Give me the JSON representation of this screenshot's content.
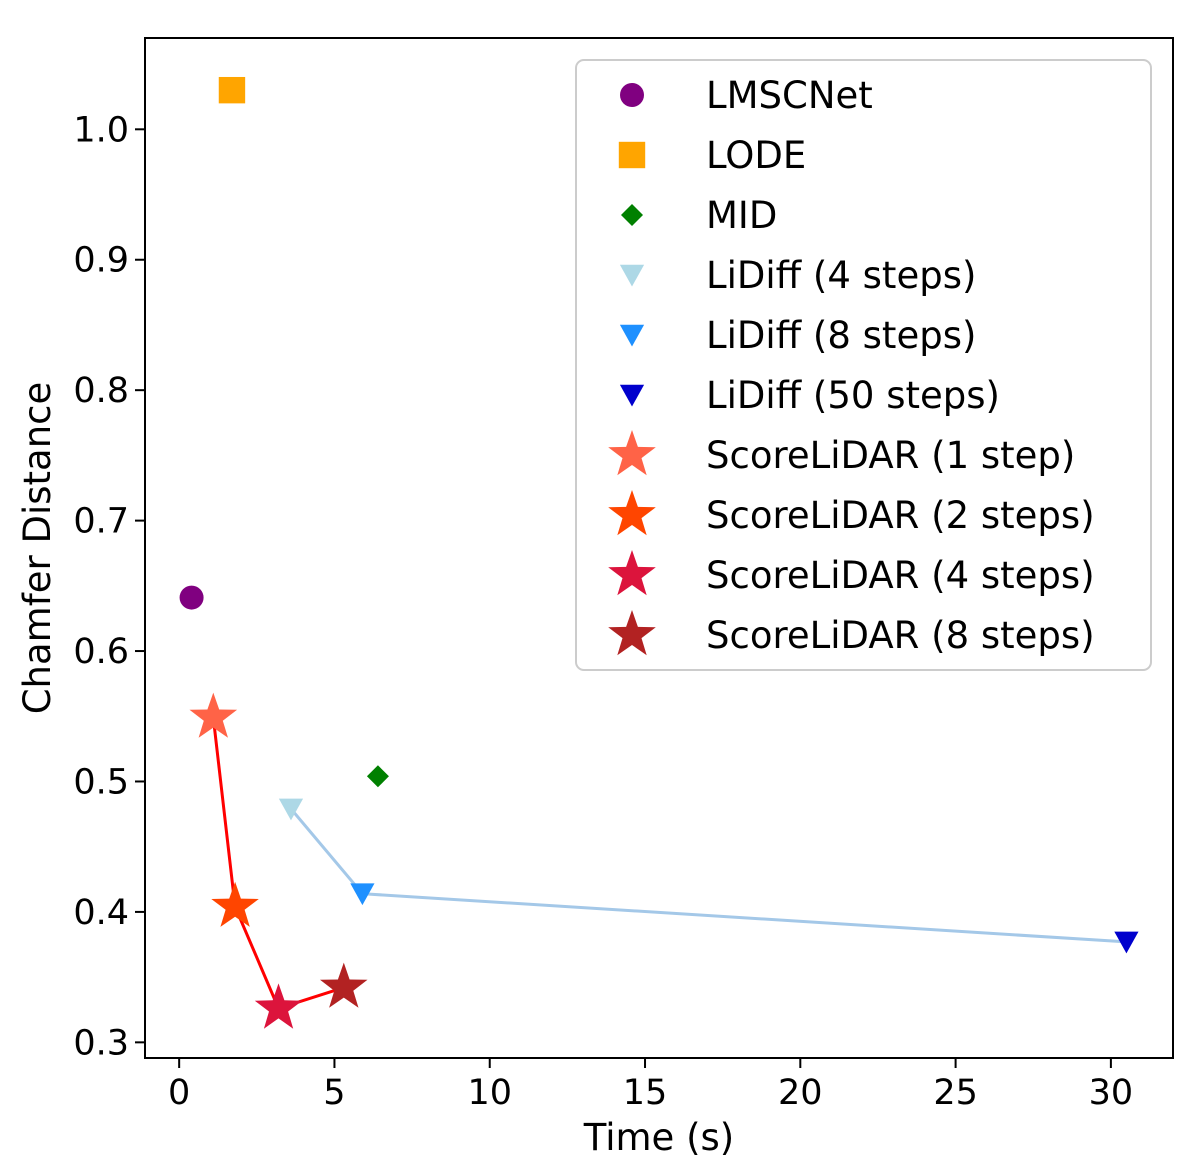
{
  "chart_data": {
    "type": "scatter",
    "title": "",
    "xlabel": "Time (s)",
    "ylabel": "Chamfer Distance",
    "xlim": [
      -1.1,
      32.0
    ],
    "ylim": [
      0.288,
      1.07
    ],
    "xticks": [
      0,
      5,
      10,
      15,
      20,
      25,
      30
    ],
    "yticks": [
      0.3,
      0.4,
      0.5,
      0.6,
      0.7,
      0.8,
      0.9,
      1.0
    ],
    "xtick_labels": [
      "0",
      "5",
      "10",
      "15",
      "20",
      "25",
      "30"
    ],
    "ytick_labels": [
      "0.3",
      "0.4",
      "0.5",
      "0.6",
      "0.7",
      "0.8",
      "0.9",
      "1.0"
    ],
    "grid": false,
    "legend_position": "top-right",
    "series": [
      {
        "name": "LMSCNet",
        "marker": "circle",
        "color": "#800080",
        "x": 0.4,
        "y": 0.641
      },
      {
        "name": "LODE",
        "marker": "square",
        "color": "#FFA500",
        "x": 1.7,
        "y": 1.03
      },
      {
        "name": "MID",
        "marker": "diamond",
        "color": "#008000",
        "x": 6.4,
        "y": 0.504
      },
      {
        "name": "LiDiff (4 steps)",
        "marker": "triangle-down",
        "color": "#ADD8E6",
        "x": 3.6,
        "y": 0.479
      },
      {
        "name": "LiDiff (8 steps)",
        "marker": "triangle-down",
        "color": "#1E90FF",
        "x": 5.9,
        "y": 0.414
      },
      {
        "name": "LiDiff (50 steps)",
        "marker": "triangle-down",
        "color": "#0000CD",
        "x": 30.5,
        "y": 0.377
      },
      {
        "name": "ScoreLiDAR (1 step)",
        "marker": "star",
        "color": "#FF6347",
        "x": 1.1,
        "y": 0.549
      },
      {
        "name": "ScoreLiDAR (2 steps)",
        "marker": "star",
        "color": "#FF4500",
        "x": 1.8,
        "y": 0.404
      },
      {
        "name": "ScoreLiDAR (4 steps)",
        "marker": "star",
        "color": "#DC143C",
        "x": 3.2,
        "y": 0.326
      },
      {
        "name": "ScoreLiDAR (8 steps)",
        "marker": "star",
        "color": "#B22222",
        "x": 5.3,
        "y": 0.342
      }
    ],
    "lines": [
      {
        "connects": [
          "LiDiff (4 steps)",
          "LiDiff (8 steps)",
          "LiDiff (50 steps)"
        ],
        "color": "#A4C8E8"
      },
      {
        "connects": [
          "ScoreLiDAR (1 step)",
          "ScoreLiDAR (2 steps)",
          "ScoreLiDAR (4 steps)",
          "ScoreLiDAR (8 steps)"
        ],
        "color": "#FF0000"
      }
    ]
  }
}
